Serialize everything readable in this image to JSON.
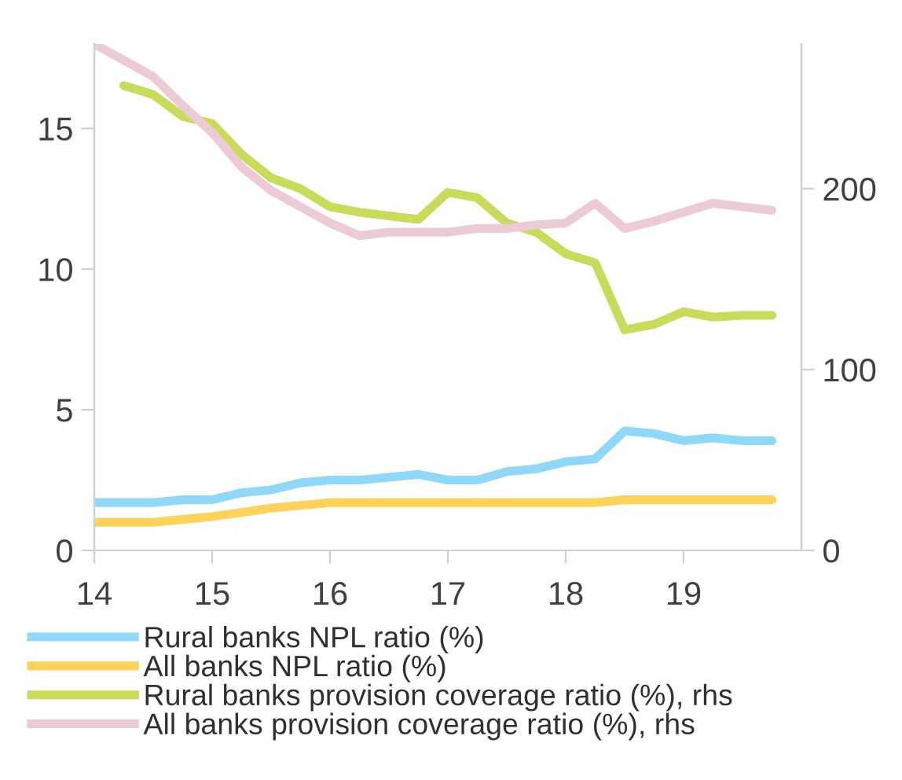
{
  "chart_data": {
    "type": "line",
    "x": [
      14,
      14.25,
      14.5,
      14.75,
      15,
      15.25,
      15.5,
      15.75,
      16,
      16.25,
      16.5,
      16.75,
      17,
      17.25,
      17.5,
      17.75,
      18,
      18.25,
      18.5,
      18.75,
      19,
      19.25,
      19.5,
      19.75
    ],
    "xlim": [
      14,
      20
    ],
    "xticks": [
      14,
      15,
      16,
      17,
      18,
      19
    ],
    "ylim": [
      0,
      18
    ],
    "yticks": [
      0,
      5,
      10,
      15
    ],
    "y2lim": [
      0,
      280
    ],
    "y2ticks": [
      0,
      100,
      200
    ],
    "grid": false,
    "legend": "bottom",
    "marker": "none",
    "line_style": "solid",
    "series": [
      {
        "name": "Rural banks NPL ratio (%)",
        "color": "#8fd8f8",
        "values": [
          1.7,
          1.7,
          1.7,
          1.8,
          1.8,
          2.05,
          2.15,
          2.4,
          2.5,
          2.5,
          2.6,
          2.7,
          2.5,
          2.5,
          2.8,
          2.9,
          3.15,
          3.25,
          4.25,
          4.15,
          3.9,
          4.0,
          3.9,
          3.9
        ]
      },
      {
        "name": "All banks NPL ratio (%)",
        "color": "#ffd25a",
        "values": [
          1.0,
          1.0,
          1.0,
          1.1,
          1.2,
          1.35,
          1.5,
          1.6,
          1.7,
          1.7,
          1.7,
          1.7,
          1.7,
          1.7,
          1.7,
          1.7,
          1.7,
          1.7,
          1.8,
          1.8,
          1.8,
          1.8,
          1.8,
          1.8
        ]
      },
      {
        "name": "Rural banks provision coverage ratio (%), rhs",
        "color": "#c8dc5a",
        "axis": "y2",
        "values": [
          null,
          257,
          252,
          240,
          236,
          219,
          206,
          200,
          190,
          187,
          185,
          183,
          198,
          195,
          181,
          176,
          164,
          159,
          122,
          125,
          132,
          129,
          130,
          130
        ]
      },
      {
        "name": "All banks provision coverage ratio (%), rhs",
        "color": "#eccad6",
        "axis": "y2",
        "values": [
          280,
          271,
          262,
          246,
          231,
          212,
          199,
          190,
          181,
          174,
          176,
          176,
          176,
          178,
          178,
          180,
          181,
          192,
          178,
          182,
          187,
          192,
          190,
          188
        ]
      }
    ]
  }
}
